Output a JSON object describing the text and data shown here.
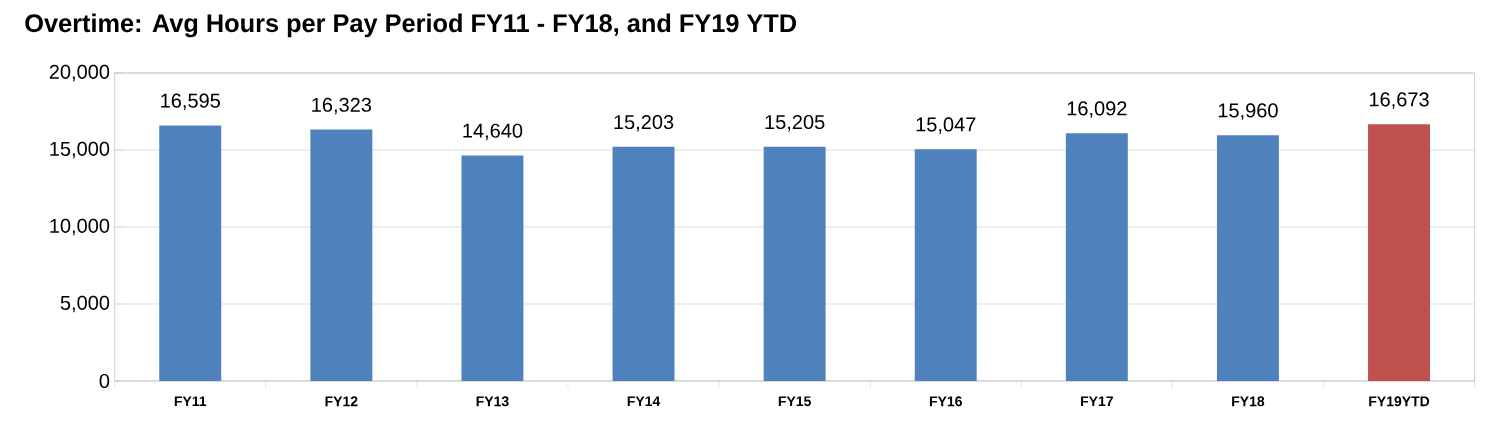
{
  "chart_data": {
    "type": "bar",
    "title": "Overtime: Avg Hours per Pay Period FY11 - FY18, and FY19 YTD",
    "categories": [
      "FY11",
      "FY12",
      "FY13",
      "FY14",
      "FY15",
      "FY16",
      "FY17",
      "FY18",
      "FY19YTD"
    ],
    "values": [
      16595,
      16323,
      14640,
      15203,
      15205,
      15047,
      16092,
      15960,
      16673
    ],
    "colors": [
      "#4f81bd",
      "#4f81bd",
      "#4f81bd",
      "#4f81bd",
      "#4f81bd",
      "#4f81bd",
      "#4f81bd",
      "#4f81bd",
      "#c0504d"
    ],
    "value_labels": [
      "16,595",
      "16,323",
      "14,640",
      "15,203",
      "15,205",
      "15,047",
      "16,092",
      "15,960",
      "16,673"
    ],
    "ylim": [
      0,
      20000
    ],
    "yticks": [
      0,
      {
        "value": 5000,
        "label": "5,000"
      },
      {
        "value": 10000,
        "label": "10,000"
      },
      {
        "value": 15000,
        "label": "15,000"
      },
      {
        "value": 20000,
        "label": "20,000"
      }
    ],
    "grid": "y"
  }
}
